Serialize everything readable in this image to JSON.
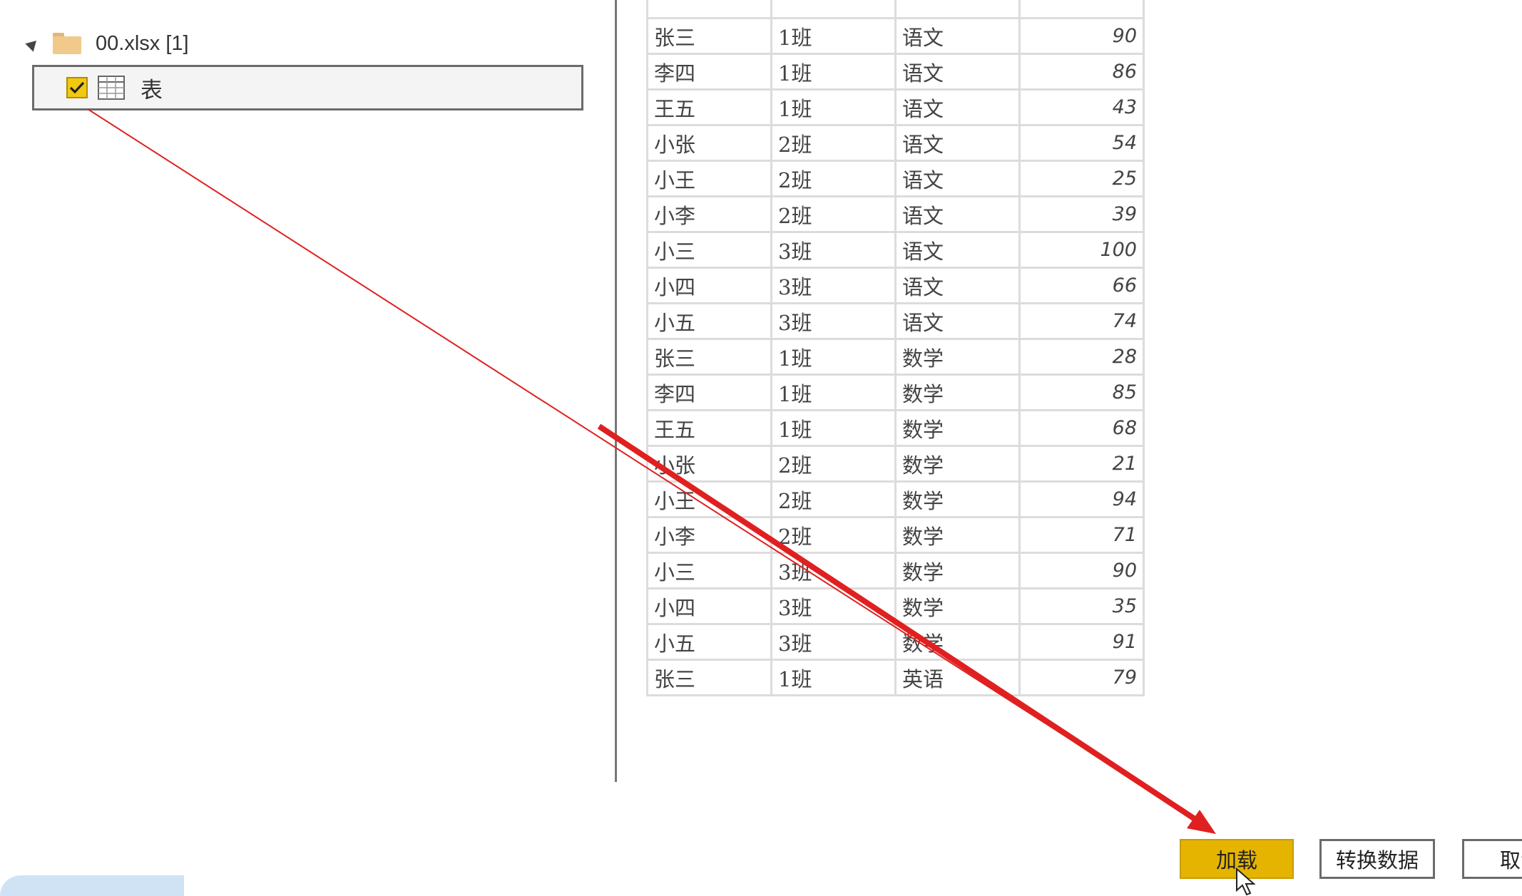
{
  "navigator": {
    "file_label": "00.xlsx [1]",
    "item_label": "表",
    "item_checked": true
  },
  "table": {
    "rows": [
      [
        "张三",
        "1班",
        "语文",
        "90"
      ],
      [
        "李四",
        "1班",
        "语文",
        "86"
      ],
      [
        "王五",
        "1班",
        "语文",
        "43"
      ],
      [
        "小张",
        "2班",
        "语文",
        "54"
      ],
      [
        "小王",
        "2班",
        "语文",
        "25"
      ],
      [
        "小李",
        "2班",
        "语文",
        "39"
      ],
      [
        "小三",
        "3班",
        "语文",
        "100"
      ],
      [
        "小四",
        "3班",
        "语文",
        "66"
      ],
      [
        "小五",
        "3班",
        "语文",
        "74"
      ],
      [
        "张三",
        "1班",
        "数学",
        "28"
      ],
      [
        "李四",
        "1班",
        "数学",
        "85"
      ],
      [
        "王五",
        "1班",
        "数学",
        "68"
      ],
      [
        "小张",
        "2班",
        "数学",
        "21"
      ],
      [
        "小王",
        "2班",
        "数学",
        "94"
      ],
      [
        "小李",
        "2班",
        "数学",
        "71"
      ],
      [
        "小三",
        "3班",
        "数学",
        "90"
      ],
      [
        "小四",
        "3班",
        "数学",
        "35"
      ],
      [
        "小五",
        "3班",
        "数学",
        "91"
      ],
      [
        "张三",
        "1班",
        "英语",
        "79"
      ]
    ]
  },
  "buttons": {
    "load": "加载",
    "transform": "转换数据",
    "cancel": "取消"
  },
  "colors": {
    "accent": "#e5b400",
    "arrow": "#e02020"
  }
}
